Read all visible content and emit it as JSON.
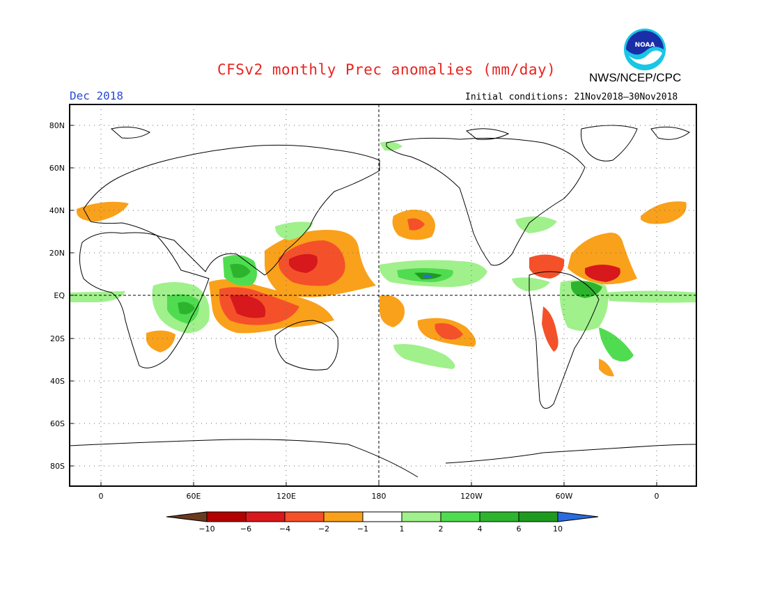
{
  "header": {
    "title": "CFSv2 monthly Prec anomalies (mm/day)",
    "month": "Dec 2018",
    "initial_conditions": "Initial conditions: 21Nov2018–30Nov2018",
    "agency": "NWS/NCEP/CPC",
    "logo_text": "NOAA"
  },
  "axes": {
    "lat_labels": [
      "80N",
      "60N",
      "40N",
      "20N",
      "EQ",
      "20S",
      "40S",
      "60S",
      "80S"
    ],
    "lon_labels": [
      "0",
      "60E",
      "120E",
      "180",
      "120W",
      "60W",
      "0"
    ]
  },
  "colorbar": {
    "labels": [
      "−10",
      "−6",
      "−4",
      "−2",
      "−1",
      "1",
      "2",
      "4",
      "6",
      "10"
    ],
    "colors": [
      "#6b3a1e",
      "#b30000",
      "#d7181c",
      "#f4512a",
      "#f9a11b",
      "#ffffff",
      "#a0f08c",
      "#50dc50",
      "#2db42d",
      "#1e9b1e",
      "#2c6bde"
    ]
  }
}
